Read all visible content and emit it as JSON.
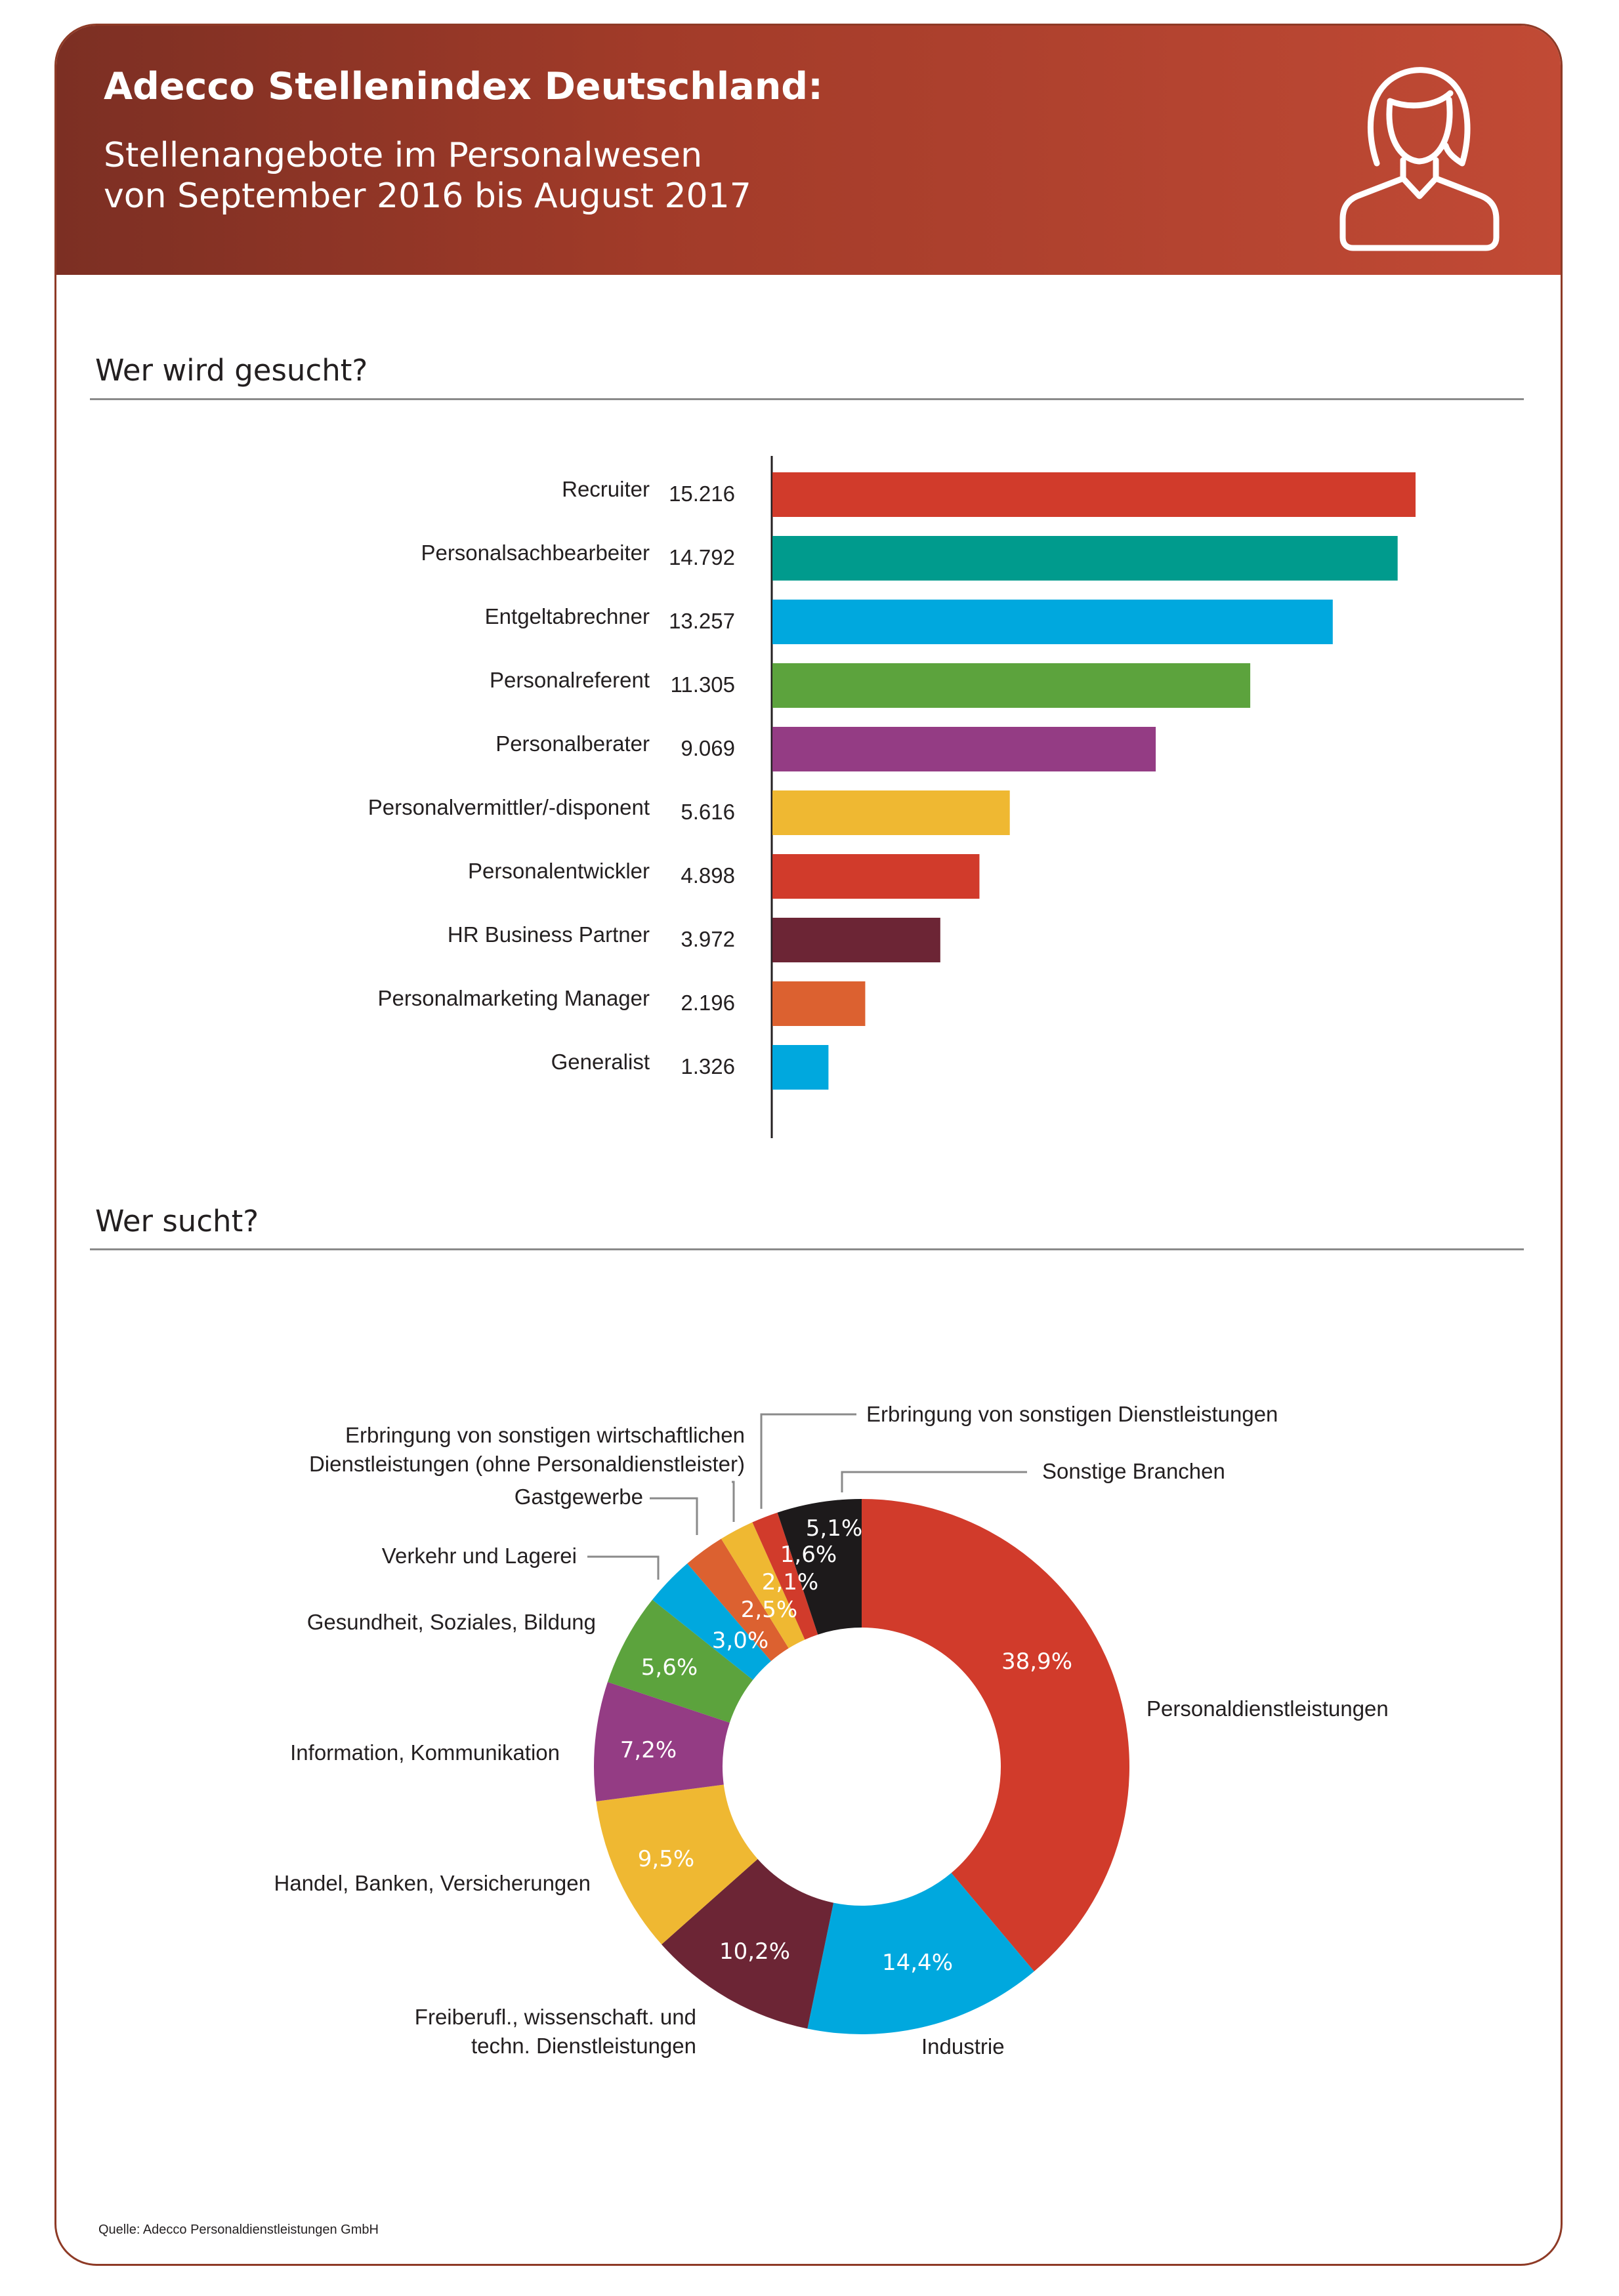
{
  "header": {
    "title": "Adecco Stellenindex Deutschland:",
    "subtitle_line1": "Stellenangebote im Personalwesen",
    "subtitle_line2": "von September 2016 bis August 2017",
    "icon": "person-icon"
  },
  "sections": {
    "bar_title": "Wer wird gesucht?",
    "pie_title": "Wer sucht?"
  },
  "source": "Quelle: Adecco Personaldienstleistungen GmbH",
  "chart_data": [
    {
      "type": "bar",
      "orientation": "horizontal",
      "title": "Wer wird gesucht?",
      "categories": [
        "Recruiter",
        "Personalsachbearbeiter",
        "Entgeltabrechner",
        "Personalreferent",
        "Personalberater",
        "Personalvermittler/-disponent",
        "Personalentwickler",
        "HR Business Partner",
        "Personalmarketing Manager",
        "Generalist"
      ],
      "values": [
        15216,
        14792,
        13257,
        11305,
        9069,
        5616,
        4898,
        3972,
        2196,
        1326
      ],
      "value_labels": [
        "15.216",
        "14.792",
        "13.257",
        "11.305",
        "9.069",
        "5.616",
        "4.898",
        "3.972",
        "2.196",
        "1.326"
      ],
      "colors": [
        "#d13b2b",
        "#009b8d",
        "#00a8de",
        "#5ca33d",
        "#943c84",
        "#efb832",
        "#d13b2b",
        "#6c2535",
        "#dc6130",
        "#00a8de"
      ],
      "xlim": [
        0,
        15216
      ],
      "grid": false
    },
    {
      "type": "pie",
      "style": "donut",
      "title": "Wer sucht?",
      "categories": [
        "Personaldienstleistungen",
        "Industrie",
        "Freiberufl., wissenschaft. und techn. Dienstleistungen",
        "Handel, Banken, Versicherungen",
        "Information, Kommunikation",
        "Gesundheit, Soziales, Bildung",
        "Verkehr und Lagerei",
        "Gastgewerbe",
        "Erbringung von sonstigen wirtschaftlichen Dienstleistungen (ohne Personaldienstleister)",
        "Erbringung von sonstigen Dienstleistungen",
        "Sonstige Branchen"
      ],
      "values": [
        38.9,
        14.4,
        10.2,
        9.5,
        7.2,
        5.6,
        3.0,
        2.5,
        2.1,
        1.6,
        5.1
      ],
      "value_labels": [
        "38,9%",
        "14,4%",
        "10,2%",
        "9,5%",
        "7,2%",
        "5,6%",
        "3,0%",
        "2,5%",
        "2,1%",
        "1,6%",
        "5,1%"
      ],
      "colors": [
        "#d13b2b",
        "#00a8de",
        "#6c2535",
        "#efb832",
        "#943c84",
        "#5ca33d",
        "#00a8de",
        "#dc6130",
        "#efb832",
        "#d13b2b",
        "#1d1a1b"
      ],
      "label_lines": [
        [
          "Personaldienstleistungen"
        ],
        [
          "Industrie"
        ],
        [
          "Freiberufl., wissenschaft. und",
          "techn. Dienstleistungen"
        ],
        [
          "Handel, Banken, Versicherungen"
        ],
        [
          "Information, Kommunikation"
        ],
        [
          "Gesundheit, Soziales, Bildung"
        ],
        [
          "Verkehr und Lagerei"
        ],
        [
          "Gastgewerbe"
        ],
        [
          "Erbringung von sonstigen wirtschaftlichen",
          "Dienstleistungen (ohne Personaldienstleister)"
        ],
        [
          "Erbringung von sonstigen Dienstleistungen"
        ],
        [
          "Sonstige Branchen"
        ]
      ]
    }
  ]
}
